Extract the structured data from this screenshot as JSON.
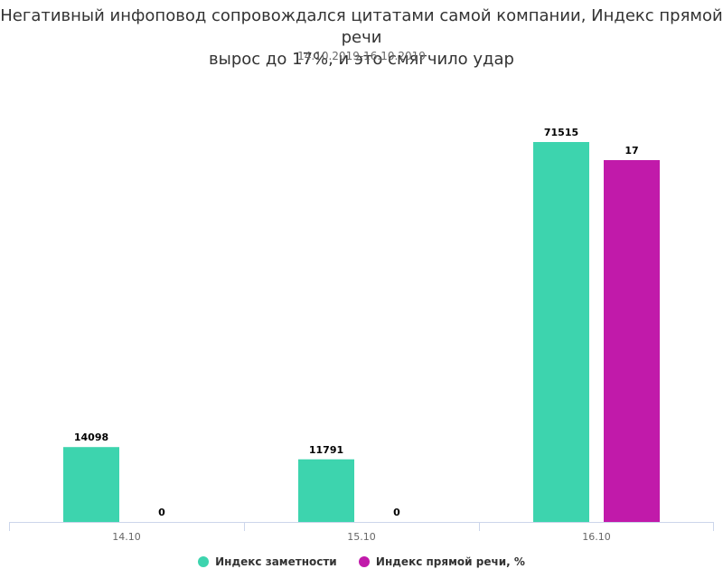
{
  "chart_data": {
    "type": "bar",
    "title_lines": [
      "Негативный инфоповод сопровождался цитатами самой компании, Индекс прямой речи",
      "вырос до 17%, и это смягчило удар"
    ],
    "subtitle": "14.10.2019-16.10.2019",
    "categories": [
      "14.10",
      "15.10",
      "16.10"
    ],
    "series": [
      {
        "name": "Индекс заметности",
        "values": [
          14098,
          11791,
          71515
        ],
        "color": "#3dd4ae"
      },
      {
        "name": "Индекс прямой речи, %",
        "values": [
          0,
          0,
          17
        ],
        "color": "#c11aaa"
      }
    ],
    "grid": false,
    "legend_position": "bottom-center"
  }
}
